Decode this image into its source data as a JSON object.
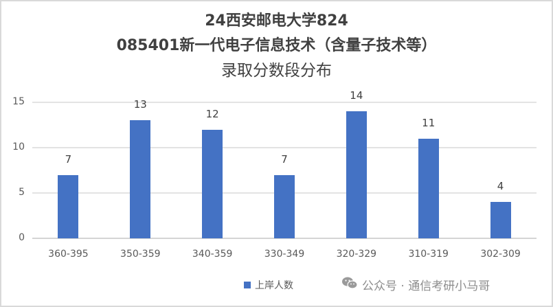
{
  "chart_data": {
    "type": "bar",
    "title_lines": [
      "24西安邮电大学824",
      "085401新一代电子信息技术（含量子技术等）",
      "录取分数段分布"
    ],
    "categories": [
      "360-395",
      "350-359",
      "340-359",
      "330-349",
      "320-329",
      "310-319",
      "302-309"
    ],
    "series": [
      {
        "name": "上岸人数",
        "values": [
          7,
          13,
          12,
          7,
          14,
          11,
          4
        ],
        "color": "#4472C4"
      }
    ],
    "xlabel": "",
    "ylabel": "",
    "ylim": [
      0,
      15
    ],
    "yticks": [
      0,
      5,
      10,
      15
    ],
    "grid": true,
    "legend_position": "bottom",
    "data_labels": true
  },
  "watermark": {
    "icon": "wechat-icon",
    "text": "公众号 · 通信考研小马哥"
  }
}
